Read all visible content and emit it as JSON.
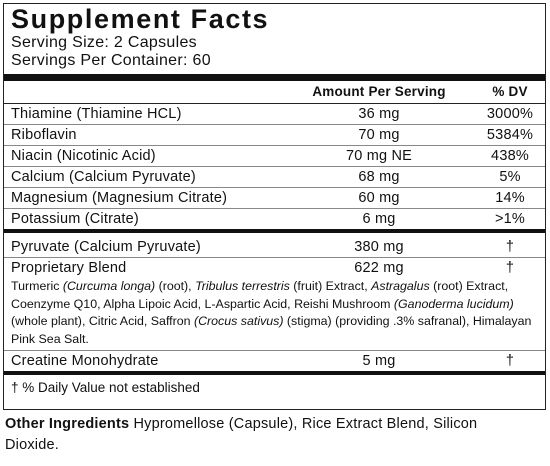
{
  "header": {
    "title": "Supplement Facts",
    "serving_size": "Serving Size: 2 Capsules",
    "servings_per_container": "Servings Per Container: 60"
  },
  "table": {
    "columns": [
      "Amount Per Serving",
      "% DV"
    ],
    "rows": [
      [
        "Thiamine (Thiamine HCL)",
        "36 mg",
        "3000%"
      ],
      [
        "Riboflavin",
        "70 mg",
        "5384%"
      ],
      [
        "Niacin (Nicotinic Acid)",
        "70 mg NE",
        "438%"
      ],
      [
        "Calcium (Calcium Pyruvate)",
        "68 mg",
        "5%"
      ],
      [
        "Magnesium (Magnesium Citrate)",
        "60 mg",
        "14%"
      ],
      [
        "Potassium (Citrate)",
        "6 mg",
        ">1%"
      ]
    ],
    "other_rows": [
      [
        "Pyruvate (Calcium Pyruvate)",
        "380 mg",
        "†"
      ],
      [
        "Proprietary Blend",
        "622 mg",
        "†"
      ]
    ],
    "blend_description": [
      {
        "text": "Turmeric ",
        "italic": false
      },
      {
        "text": "(Curcuma longa)",
        "italic": true
      },
      {
        "text": " (root), ",
        "italic": false
      },
      {
        "text": "Tribulus terrestris",
        "italic": true
      },
      {
        "text": " (fruit) Extract, ",
        "italic": false
      },
      {
        "text": "Astragalus",
        "italic": true
      },
      {
        "text": " (root) Extract, Coenzyme Q10, Alpha Lipoic Acid, L-Aspartic Acid, Reishi Mushroom ",
        "italic": false
      },
      {
        "text": "(Ganoderma lucidum)",
        "italic": true
      },
      {
        "text": " (whole plant), Citric Acid, Saffron ",
        "italic": false
      },
      {
        "text": "(Crocus sativus)",
        "italic": true
      },
      {
        "text": " (stigma) (providing .3% safranal), Himalayan Pink Sea Salt.",
        "italic": false
      }
    ],
    "last_row": [
      "Creatine Monohydrate",
      "5 mg",
      "†"
    ],
    "footnote": "† % Daily Value not established"
  },
  "other_ingredients": {
    "label": "Other Ingredients",
    "text": " Hypromellose (Capsule), Rice Extract Blend, Silicon Dioxide."
  }
}
